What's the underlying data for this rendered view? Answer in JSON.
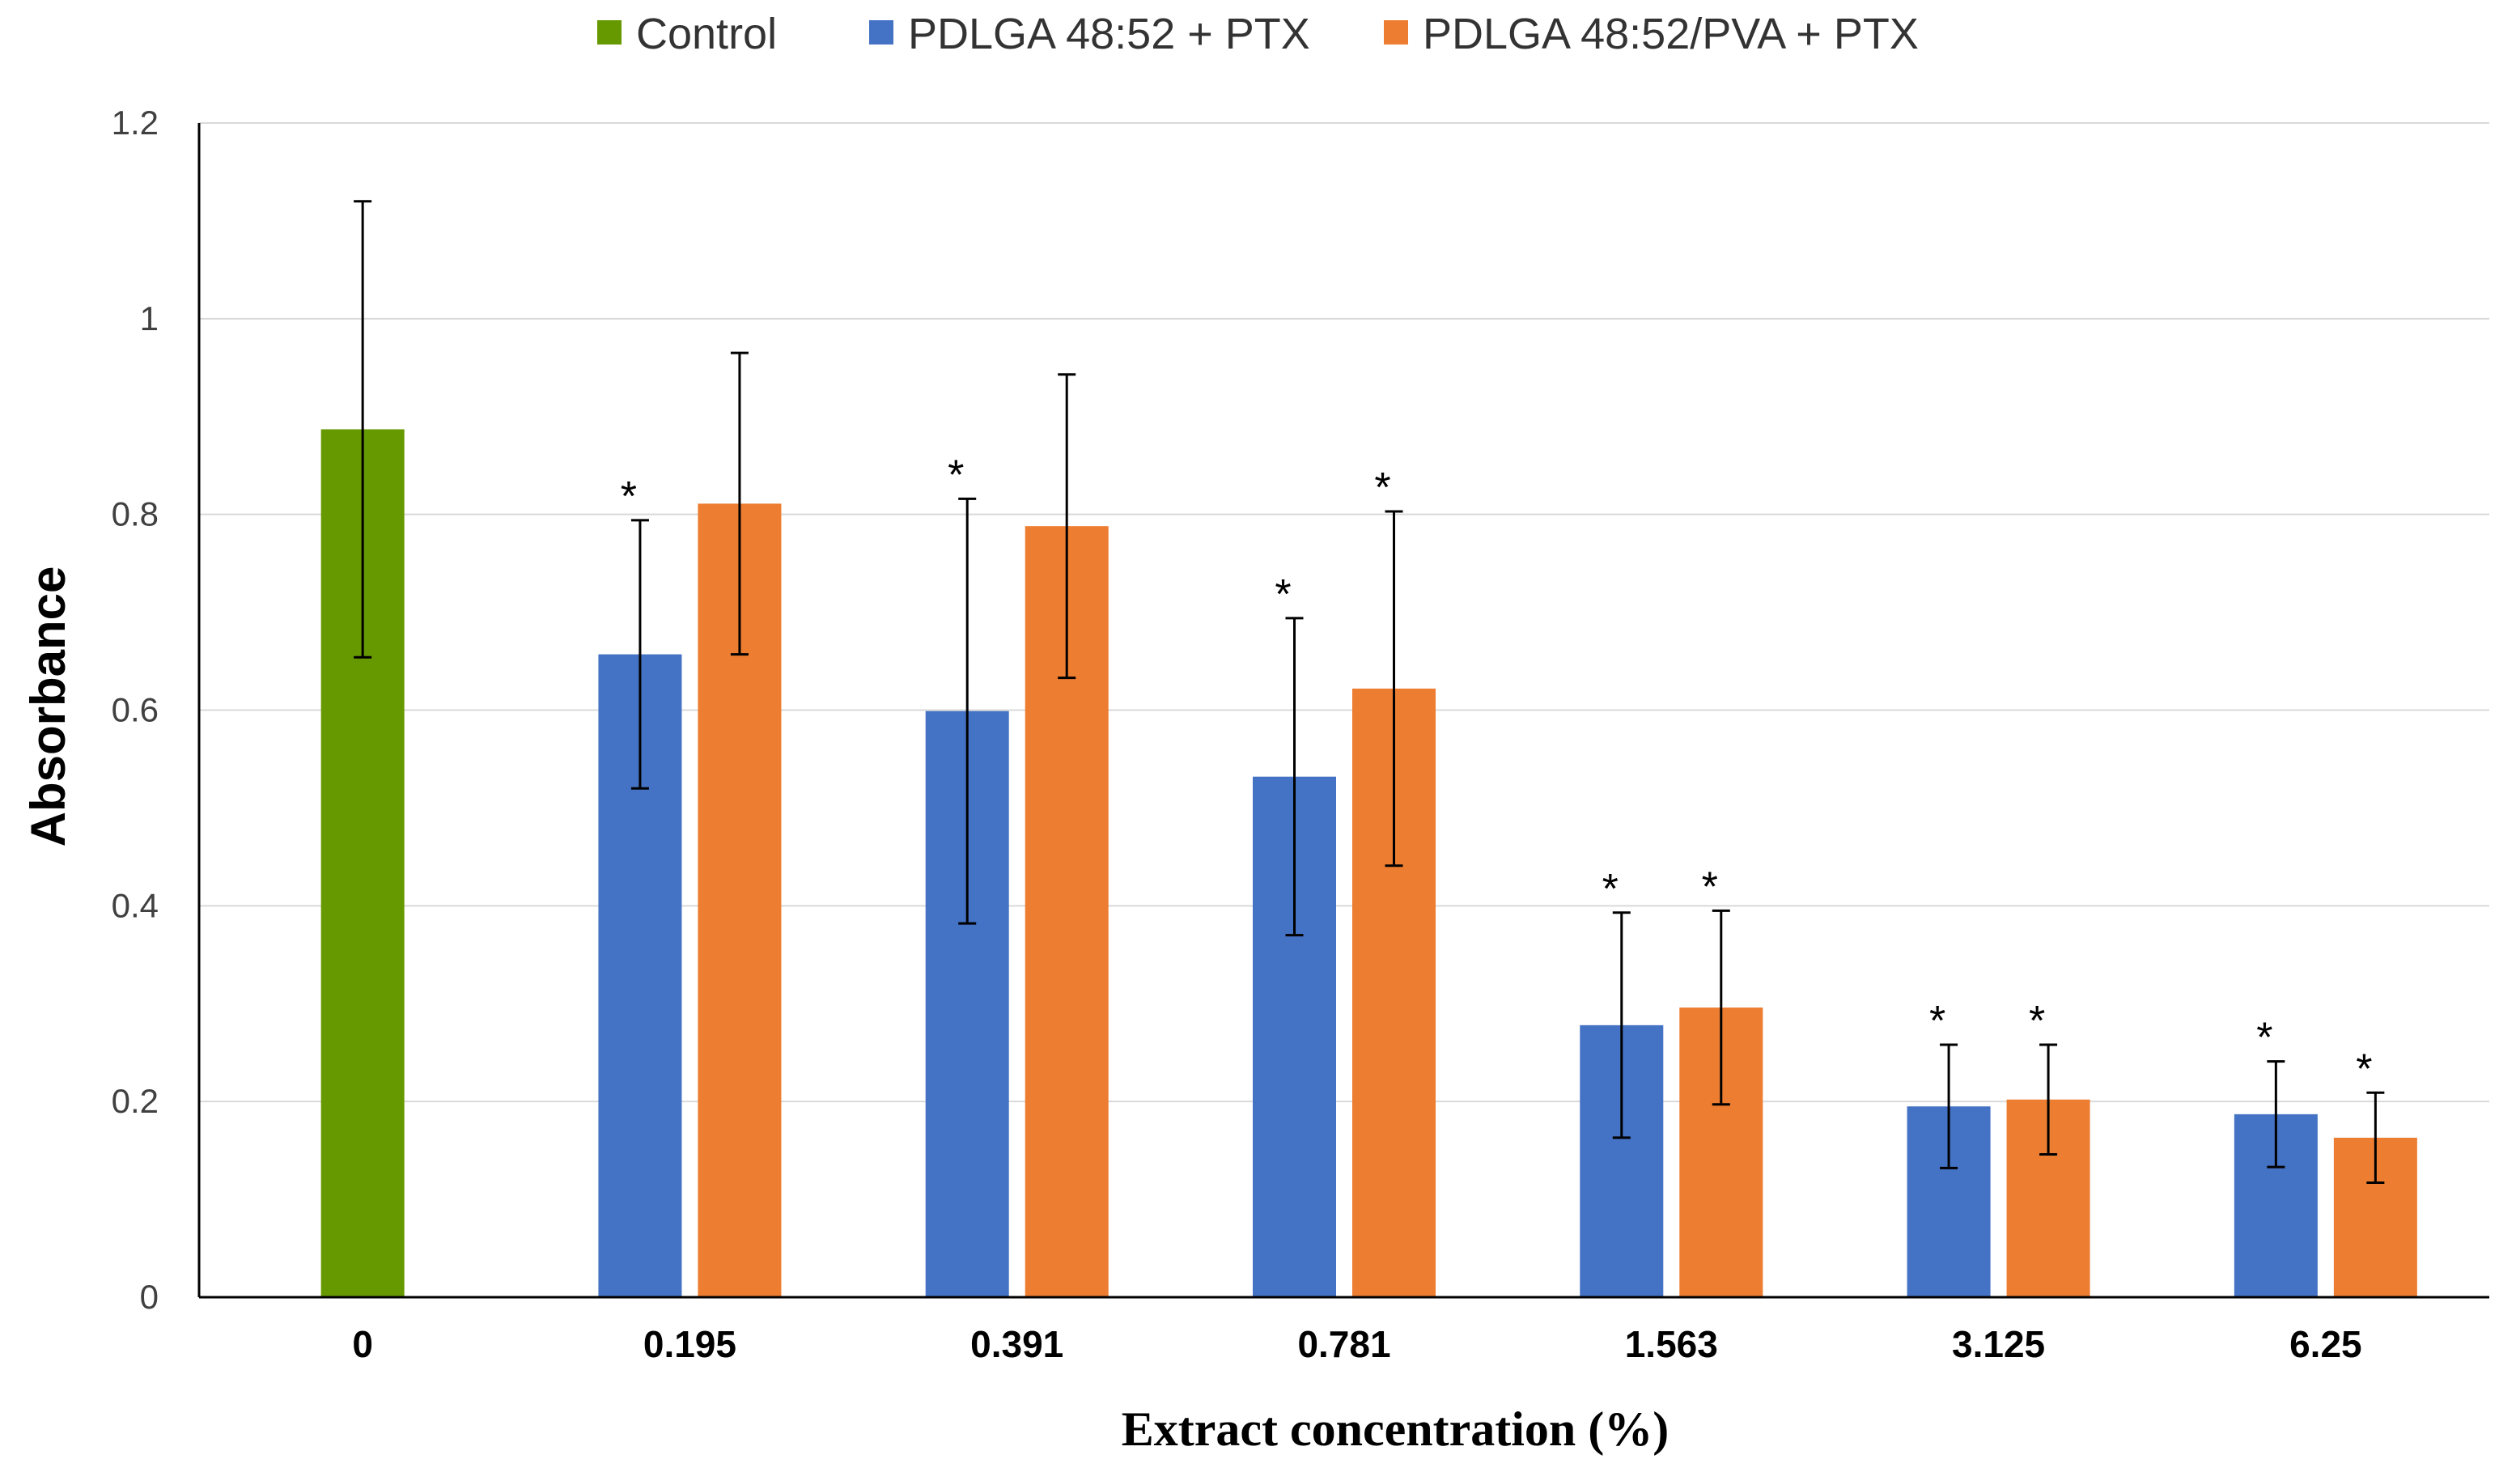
{
  "chart_data": {
    "type": "bar",
    "title": "",
    "xlabel": "Extract concentration (%)",
    "ylabel": "Absorbance",
    "ylim": [
      0,
      1.2
    ],
    "yticks": [
      "0",
      "0.2",
      "0.4",
      "0.6",
      "0.8",
      "1",
      "1.2"
    ],
    "grid": true,
    "legend_position": "top",
    "categories": [
      "0",
      "0.195",
      "0.391",
      "0.781",
      "1.563",
      "3.125",
      "6.25"
    ],
    "series": [
      {
        "name": "Control",
        "color": "#669900",
        "values": [
          0.887,
          null,
          null,
          null,
          null,
          null,
          null
        ],
        "errors": [
          0.233,
          null,
          null,
          null,
          null,
          null,
          null
        ],
        "significant": [
          false,
          false,
          false,
          false,
          false,
          false,
          false
        ]
      },
      {
        "name": "PDLGA 48:52 + PTX",
        "color": "#4472C4",
        "values": [
          null,
          0.657,
          0.599,
          0.532,
          0.278,
          0.195,
          0.187
        ],
        "errors": [
          null,
          0.137,
          0.217,
          0.162,
          0.115,
          0.063,
          0.054
        ],
        "significant": [
          false,
          true,
          true,
          true,
          true,
          true,
          true
        ]
      },
      {
        "name": "PDLGA 48:52/PVA + PTX",
        "color": "#ED7D31",
        "values": [
          null,
          0.811,
          0.788,
          0.622,
          0.296,
          0.202,
          0.163
        ],
        "errors": [
          null,
          0.154,
          0.155,
          0.181,
          0.099,
          0.056,
          0.046
        ],
        "significant": [
          false,
          false,
          false,
          true,
          true,
          true,
          true
        ]
      }
    ],
    "annotation_marker": "*"
  }
}
